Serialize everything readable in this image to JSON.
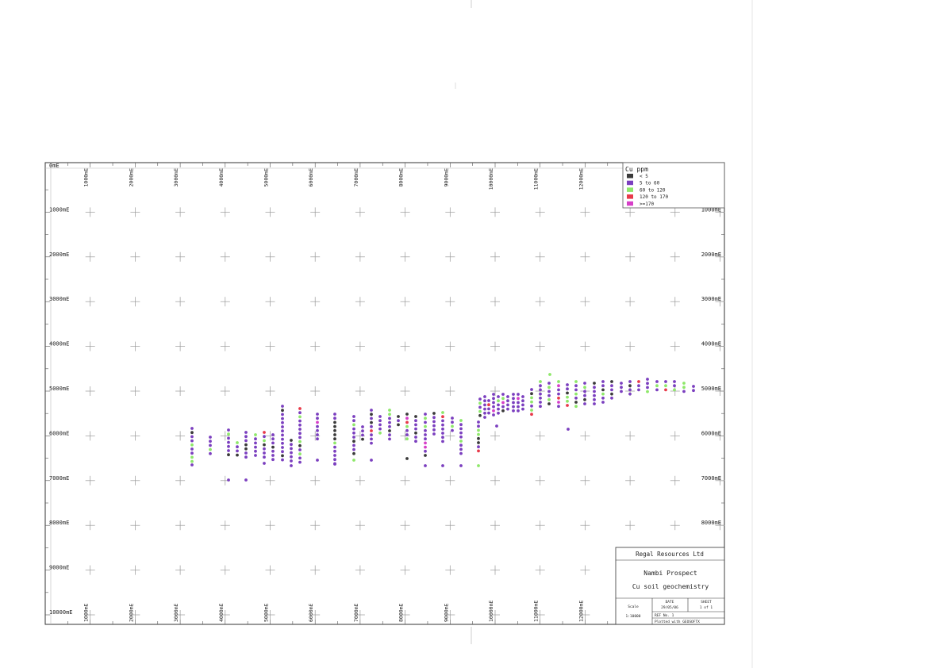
{
  "map": {
    "origin_label": "0mE",
    "easting_labels": [
      "1000mE",
      "2000mE",
      "3000mE",
      "4000mE",
      "5000mE",
      "6000mE",
      "7000mE",
      "8000mE",
      "9000mE",
      "10000mE",
      "11000mE",
      "12000mE"
    ],
    "bottom_easting_labels": [
      "1000mE",
      "2000mE",
      "3000mE",
      "4000mE",
      "5000mE",
      "6000mE",
      "7000mE",
      "8000mE",
      "9000mE",
      "10000mE",
      "11000mE",
      "12000mE"
    ],
    "northing_labels": [
      "1000mE",
      "2000mE",
      "3000mE",
      "4000mE",
      "5000mE",
      "6000mE",
      "7000mE",
      "8000mE",
      "9000mE",
      "10000mE"
    ],
    "right_northing_labels": [
      "1000mE",
      "2000mE",
      "3000mE",
      "4000mE",
      "5000mE",
      "6000mE",
      "7000mE",
      "8000mE"
    ]
  },
  "legend": {
    "title": "Cu ppm",
    "items": [
      {
        "label": "< 5",
        "color": "#3a3a3a"
      },
      {
        "label": "5 to 60",
        "color": "#7b3fbf"
      },
      {
        "label": "60 to 120",
        "color": "#8ee86a"
      },
      {
        "label": "120 to 170",
        "color": "#e83a4a"
      },
      {
        "label": ">=170",
        "color": "#d63fc8"
      }
    ]
  },
  "title_block": {
    "company": "Regal Resources Ltd",
    "prospect": "Nambi Prospect",
    "subject": "Cu soil geochemistry",
    "scale_label": "Scale",
    "scale_value": "1:10000",
    "date_label": "DATE",
    "date_value": "29/05/06",
    "sheet_label": "SHEET",
    "sheet_value": "1 of 1",
    "ref_value": "REF No. 1",
    "plotted_value": "Plotted with GEOSOFTX"
  }
}
